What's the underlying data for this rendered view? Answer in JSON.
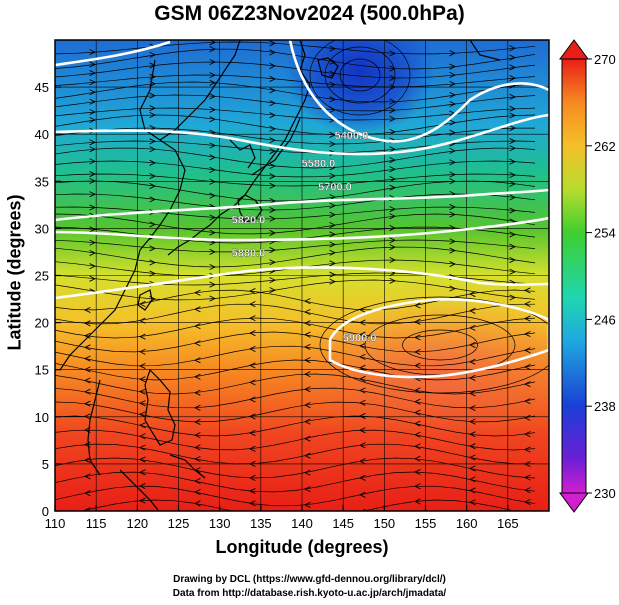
{
  "title": "GSM 06Z23Nov2024 (500.0hPa)",
  "credits": {
    "line1": "Drawing by DCL (https://www.gfd-dennou.org/library/dcl/)",
    "line2": "Data from http://database.rish.kyoto-u.ac.jp/arch/jmadata/"
  },
  "map": {
    "xlabel": "Longitude (degrees)",
    "ylabel": "Latitude  (degrees)",
    "lon_range": [
      110,
      170
    ],
    "lat_range": [
      0,
      50
    ],
    "lon_ticks": [
      110,
      115,
      120,
      125,
      130,
      135,
      140,
      145,
      150,
      155,
      160,
      165
    ],
    "lat_ticks": [
      0,
      5,
      10,
      15,
      20,
      25,
      30,
      35,
      40,
      45
    ],
    "colorbar": {
      "min": 230,
      "max": 270,
      "ticks": [
        230,
        238,
        246,
        254,
        262,
        270
      ]
    },
    "contour_labels": [
      {
        "text": "5400.0",
        "lon": 146,
        "lat": 39.5
      },
      {
        "text": "5580.0",
        "lon": 142,
        "lat": 36.5
      },
      {
        "text": "5700.0",
        "lon": 144,
        "lat": 34
      },
      {
        "text": "5820.0",
        "lon": 133.5,
        "lat": 30.5
      },
      {
        "text": "5880.0",
        "lon": 133.5,
        "lat": 27
      },
      {
        "text": "5900.0",
        "lon": 147,
        "lat": 18
      }
    ]
  }
}
